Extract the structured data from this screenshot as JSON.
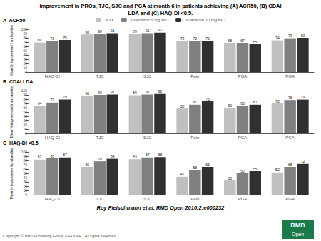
{
  "title": "Improvement in PROs, TJC, SJC and PGA at month 6 in patients achieving (A) ACR50, (B) CDAI\nLDA and (C) HAQ-DI <0.5.",
  "subtitle": "Roy Fleischmann et al. RMD Open 2016;2:e000232",
  "annotations": [
    {
      "text": "Copyright © BMJ Publishing Group & EULAR.  All rights reserved.",
      "color": "#555555"
    },
    {
      "text": "RMD",
      "color": "#1a7a4a"
    },
    {
      "text": "Open",
      "color": "#1a7a4a"
    }
  ],
  "chart_data": [
    {
      "type": "bar",
      "title": "A  ACR50",
      "categories": [
        "HAQ-DI",
        "TJC",
        "SJC",
        "Pain",
        "PGA",
        "PGA"
      ],
      "series": [
        {
          "name": "MTX",
          "color": "#c0c0c0",
          "values": [
            69,
            88,
            89,
            72,
            68,
            74
          ]
        },
        {
          "name": "Tofacitinib 5 mg BID",
          "color": "#808080",
          "values": [
            73,
            90,
            91,
            72,
            67,
            79
          ]
        },
        {
          "name": "Tofacitinib 10 mg BID",
          "color": "#303030",
          "values": [
            75,
            91,
            92,
            72,
            65,
            80
          ]
        }
      ],
      "ylabel": "Mean % improvement from baseline",
      "ylim": [
        0,
        100
      ],
      "yticks": [
        0,
        10,
        20,
        30,
        40,
        50,
        60,
        70,
        80,
        90,
        100
      ],
      "grid": false,
      "data_labels": true,
      "legend": "top"
    },
    {
      "type": "bar",
      "title": "B  CDAI LDA",
      "categories": [
        "HAQ-DI",
        "TJC",
        "SJC",
        "Pain",
        "PGA",
        "PGA"
      ],
      "series": [
        {
          "name": "MTX",
          "color": "#c0c0c0",
          "values": [
            64,
            88,
            89,
            58,
            60,
            70
          ]
        },
        {
          "name": "Tofacitinib 5 mg BID",
          "color": "#808080",
          "values": [
            72,
            90,
            91,
            67,
            65,
            78
          ]
        },
        {
          "name": "Tofacitinib 10 mg BID",
          "color": "#303030",
          "values": [
            79,
            91,
            92,
            75,
            67,
            79
          ]
        }
      ],
      "ylabel": "Mean % improvement from baseline",
      "ylim": [
        0,
        100
      ],
      "yticks": [
        0,
        10,
        20,
        30,
        40,
        50,
        60,
        70,
        80,
        90,
        100
      ],
      "grid": false,
      "data_labels": true
    },
    {
      "type": "bar",
      "title": "C  HAQ-DI <0.5",
      "categories": [
        "HAQ-DI",
        "TJC",
        "SJC",
        "Pain",
        "PGA",
        "PGA"
      ],
      "series": [
        {
          "name": "MTX",
          "color": "#c0c0c0",
          "values": [
            82,
            65,
            83,
            42,
            33,
            52
          ]
        },
        {
          "name": "Tofacitinib 5 mg BID",
          "color": "#808080",
          "values": [
            85,
            78,
            87,
            58,
            50,
            65
          ]
        },
        {
          "name": "Tofacitinib 10 mg BID",
          "color": "#303030",
          "values": [
            87,
            84,
            88,
            65,
            55,
            72
          ]
        }
      ],
      "ylabel": "Mean % improvement from baseline",
      "ylim": [
        0,
        100
      ],
      "yticks": [
        0,
        10,
        20,
        30,
        40,
        50,
        60,
        70,
        80,
        90,
        100
      ],
      "grid": false,
      "data_labels": true
    }
  ]
}
